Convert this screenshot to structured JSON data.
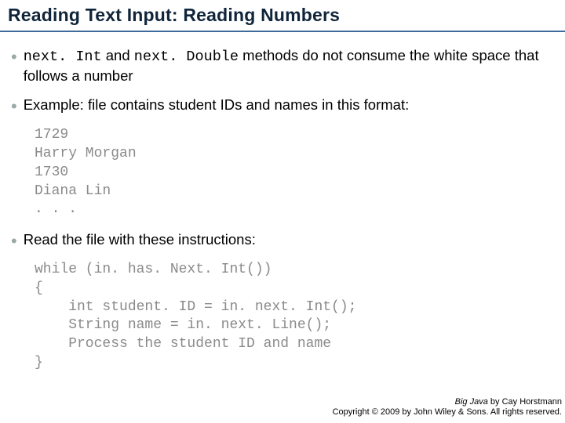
{
  "title": "Reading Text Input: Reading Numbers",
  "colors": {
    "title_text": "#10243a",
    "title_underline": "#3e6a9c",
    "bullet_dot": "#99a9a9",
    "body_text": "#000000",
    "code_text": "#8a8a8a",
    "background": "#ffffff"
  },
  "bullets": [
    {
      "pre_code1": "next. Int",
      "mid1": " and ",
      "pre_code2": "next. Double",
      "rest": " methods do not consume the white space that follows a number"
    },
    {
      "text": "Example: file contains student IDs and names in this format:"
    },
    {
      "text": "Read the file with these instructions:"
    }
  ],
  "code1": "1729\nHarry Morgan\n1730\nDiana Lin\n. . .",
  "code2": "while (in. has. Next. Int())\n{\n    int student. ID = in. next. Int();\n    String name = in. next. Line();\n    Process the student ID and name\n}",
  "footer": {
    "line1a": "Big Java",
    "line1b": " by Cay Horstmann",
    "line2": "Copyright © 2009 by John Wiley & Sons.  All rights reserved."
  }
}
